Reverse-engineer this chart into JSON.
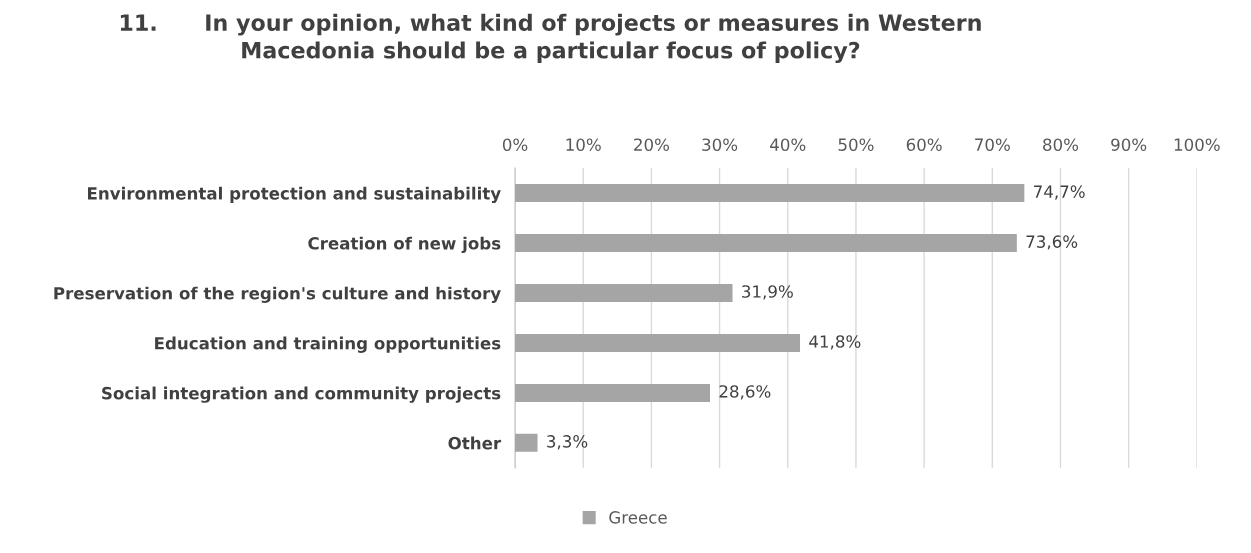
{
  "chart_data": {
    "type": "bar",
    "orientation": "horizontal",
    "title": "11.      In your opinion, what kind of projects or measures in Western\nMacedonia should be a particular focus of policy?",
    "categories": [
      "Environmental protection and sustainability",
      "Creation of new jobs",
      "Preservation of the region's culture and history",
      "Education and training opportunities",
      "Social integration and community projects",
      "Other"
    ],
    "series": [
      {
        "name": "Greece",
        "color": "#a5a5a5",
        "values": [
          74.7,
          73.6,
          31.9,
          41.8,
          28.6,
          3.3
        ],
        "value_labels": [
          "74,7%",
          "73,6%",
          "31,9%",
          "41,8%",
          "28,6%",
          "3,3%"
        ]
      }
    ],
    "xlim": [
      0,
      100
    ],
    "xticks": [
      {
        "value": 0,
        "label": "0%"
      },
      {
        "value": 10,
        "label": "10%"
      },
      {
        "value": 20,
        "label": "20%"
      },
      {
        "value": 30,
        "label": "30%"
      },
      {
        "value": 40,
        "label": "40%"
      },
      {
        "value": 50,
        "label": "50%"
      },
      {
        "value": 60,
        "label": "60%"
      },
      {
        "value": 70,
        "label": "70%"
      },
      {
        "value": 80,
        "label": "80%"
      },
      {
        "value": 90,
        "label": "90%"
      },
      {
        "value": 100,
        "label": "100%"
      }
    ],
    "grid": "x",
    "legend": "bottom"
  }
}
